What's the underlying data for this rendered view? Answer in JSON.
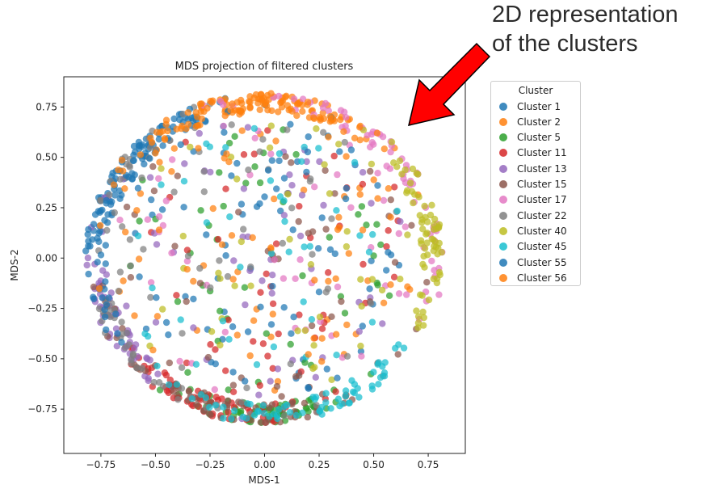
{
  "annotation": {
    "line1": "2D representation",
    "line2": "of the clusters",
    "arrow_color": "#ff0000"
  },
  "legend": {
    "title": "Cluster"
  },
  "chart_data": {
    "type": "scatter",
    "title": "MDS projection of filtered clusters",
    "xlabel": "MDS-1",
    "ylabel": "MDS-2",
    "xlim": [
      -0.92,
      0.92
    ],
    "ylim": [
      -0.97,
      0.9
    ],
    "xticks": [
      -0.75,
      -0.5,
      -0.25,
      0.0,
      0.25,
      0.5,
      0.75
    ],
    "xtick_labels": [
      "−0.75",
      "−0.50",
      "−0.25",
      "0.00",
      "0.25",
      "0.50",
      "0.75"
    ],
    "yticks": [
      -0.75,
      -0.5,
      -0.25,
      0.0,
      0.25,
      0.5,
      0.75
    ],
    "ytick_labels": [
      "−0.75",
      "−0.50",
      "−0.25",
      "0.00",
      "0.25",
      "0.50",
      "0.75"
    ],
    "grid": false,
    "legend_position": "outside-right",
    "approximate_radius": 0.82,
    "series": [
      {
        "name": "Cluster 1",
        "color": "#1f77b4",
        "center_angle_deg": 135,
        "spread_deg": 30
      },
      {
        "name": "Cluster 2",
        "color": "#ff7f0e",
        "center_angle_deg": 85,
        "spread_deg": 28
      },
      {
        "name": "Cluster 5",
        "color": "#2ca02c",
        "center_angle_deg": 270,
        "spread_deg": 20
      },
      {
        "name": "Cluster 11",
        "color": "#d62728",
        "center_angle_deg": 245,
        "spread_deg": 25
      },
      {
        "name": "Cluster 13",
        "color": "#9467bd",
        "center_angle_deg": 205,
        "spread_deg": 30
      },
      {
        "name": "Cluster 15",
        "color": "#8c564b",
        "center_angle_deg": 250,
        "spread_deg": 60
      },
      {
        "name": "Cluster 17",
        "color": "#e377c2",
        "center_angle_deg": 40,
        "spread_deg": 60
      },
      {
        "name": "Cluster 22",
        "color": "#7f7f7f",
        "center_angle_deg": 180,
        "spread_deg": 90
      },
      {
        "name": "Cluster 40",
        "color": "#bcbd22",
        "center_angle_deg": 10,
        "spread_deg": 32
      },
      {
        "name": "Cluster 45",
        "color": "#17becf",
        "center_angle_deg": 285,
        "spread_deg": 40
      },
      {
        "name": "Cluster 55",
        "color": "#1f77b4",
        "center_angle_deg": 160,
        "spread_deg": 45
      },
      {
        "name": "Cluster 56",
        "color": "#ff7f0e",
        "center_angle_deg": 110,
        "spread_deg": 40
      }
    ]
  }
}
